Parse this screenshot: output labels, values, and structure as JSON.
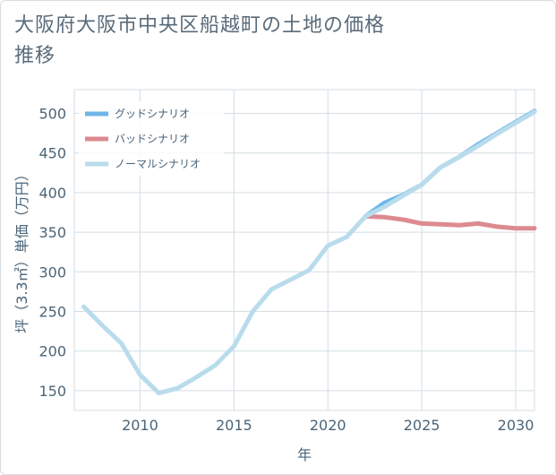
{
  "title": "大阪府大阪市中央区船越町の土地の価格推移",
  "chart_data": {
    "type": "line",
    "title": "大阪府大阪市中央区船越町の土地の価格推移",
    "xlabel": "年",
    "ylabel": "坪（3.3㎡）単価（万円）",
    "xlim": [
      2006.5,
      2031
    ],
    "ylim": [
      125,
      530
    ],
    "xticks": [
      2010,
      2015,
      2020,
      2025,
      2030
    ],
    "yticks": [
      150,
      200,
      250,
      300,
      350,
      400,
      450,
      500
    ],
    "grid": true,
    "legend_position": "top-left",
    "series": [
      {
        "name": "グッドシナリオ",
        "color": "#6fb6e8",
        "x": [
          2022,
          2023,
          2024,
          2025,
          2026,
          2027,
          2028,
          2029,
          2030,
          2031
        ],
        "y": [
          370,
          387,
          397,
          410,
          432,
          445,
          461,
          475,
          489,
          503
        ]
      },
      {
        "name": "バッドシナリオ",
        "color": "#dc8a90",
        "x": [
          2022,
          2023,
          2024,
          2025,
          2026,
          2027,
          2028,
          2029,
          2030,
          2031
        ],
        "y": [
          370,
          369,
          366,
          361,
          360,
          359,
          361,
          357,
          355,
          355
        ]
      },
      {
        "name": "ノーマルシナリオ",
        "color": "#b9dcec",
        "x": [
          2007,
          2008,
          2009,
          2010,
          2011,
          2012,
          2013,
          2014,
          2015,
          2016,
          2017,
          2018,
          2019,
          2020,
          2021,
          2022,
          2023,
          2024,
          2025,
          2026,
          2027,
          2028,
          2029,
          2030,
          2031
        ],
        "y": [
          256,
          232,
          210,
          170,
          147,
          153,
          167,
          182,
          206,
          250,
          278,
          290,
          302,
          333,
          344,
          370,
          382,
          396,
          410,
          432,
          445,
          459,
          474,
          488,
          502
        ]
      }
    ]
  }
}
